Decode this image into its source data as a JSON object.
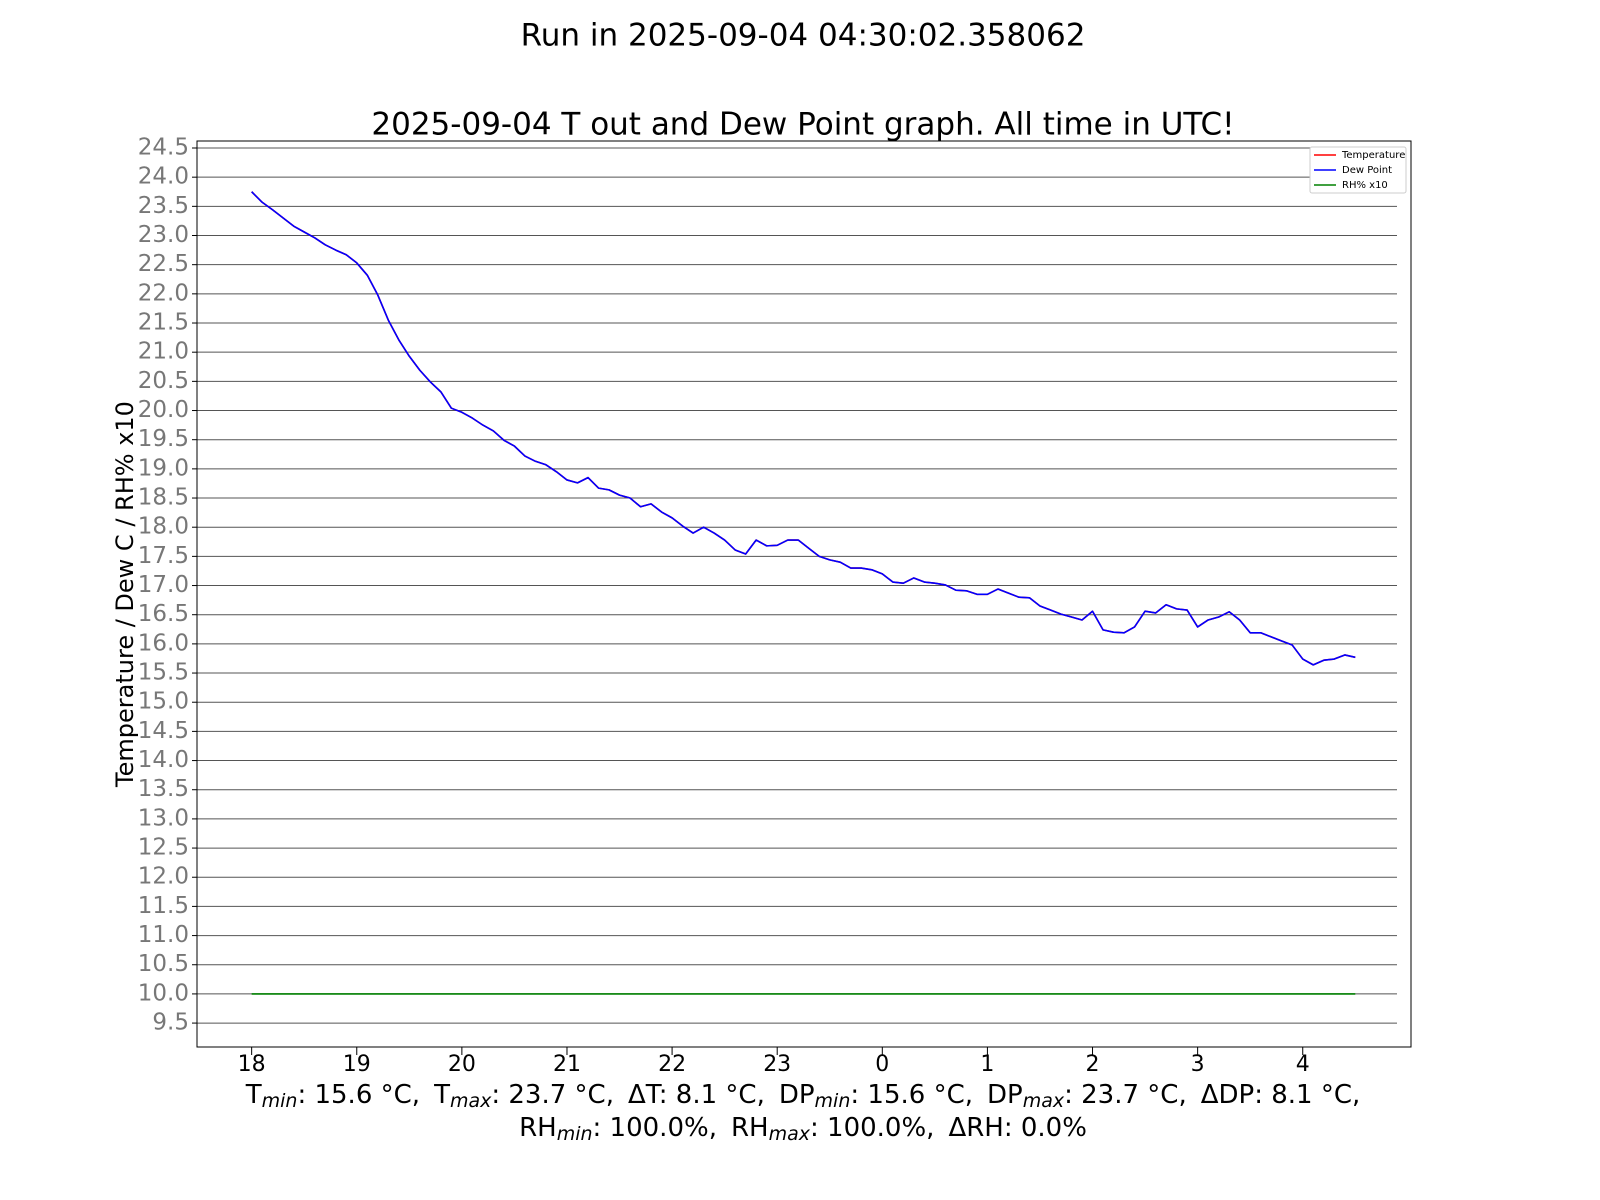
{
  "chart_data": {
    "type": "line",
    "suptitle": "Run in 2025-09-04 04:30:02.358062",
    "title": "2025-09-04 T out and Dew Point graph. All time in UTC!",
    "ylabel": "Temperature / Dew C / RH% x10",
    "xlim": [
      17.48,
      29.03
    ],
    "ylim": [
      9.09,
      24.62
    ],
    "xticks": [
      18,
      19,
      20,
      21,
      22,
      23,
      {
        "value": 24,
        "label": "0"
      },
      {
        "value": 25,
        "label": "1"
      },
      {
        "value": 26,
        "label": "2"
      },
      {
        "value": 27,
        "label": "3"
      },
      {
        "value": 28,
        "label": "4"
      }
    ],
    "yticks": [
      9.5,
      {
        "value": 10,
        "label": "10.0"
      },
      10.5,
      {
        "value": 11,
        "label": "11.0"
      },
      11.5,
      {
        "value": 12,
        "label": "12.0"
      },
      12.5,
      {
        "value": 13,
        "label": "13.0"
      },
      13.5,
      {
        "value": 14,
        "label": "14.0"
      },
      14.5,
      {
        "value": 15,
        "label": "15.0"
      },
      15.5,
      {
        "value": 16,
        "label": "16.0"
      },
      16.5,
      {
        "value": 17,
        "label": "17.0"
      },
      17.5,
      {
        "value": 18,
        "label": "18.0"
      },
      18.5,
      {
        "value": 19,
        "label": "19.0"
      },
      19.5,
      {
        "value": 20,
        "label": "20.0"
      },
      20.5,
      {
        "value": 21,
        "label": "21.0"
      },
      21.5,
      {
        "value": 22,
        "label": "22.0"
      },
      22.5,
      {
        "value": 23,
        "label": "23.0"
      },
      23.5,
      {
        "value": 24,
        "label": "24.0"
      },
      24.5
    ],
    "grid": true,
    "legend": "upper right",
    "x": [
      18.0,
      18.1,
      18.2,
      18.3,
      18.4,
      18.5,
      18.6,
      18.7,
      18.8,
      18.9,
      19.0,
      19.1,
      19.2,
      19.3,
      19.4,
      19.5,
      19.6,
      19.7,
      19.8,
      19.9,
      20.0,
      20.1,
      20.2,
      20.3,
      20.4,
      20.5,
      20.6,
      20.7,
      20.8,
      20.9,
      21.0,
      21.1,
      21.2,
      21.3,
      21.4,
      21.5,
      21.6,
      21.7,
      21.8,
      21.9,
      22.0,
      22.1,
      22.2,
      22.3,
      22.4,
      22.5,
      22.6,
      22.7,
      22.8,
      22.9,
      23.0,
      23.1,
      23.2,
      23.3,
      23.4,
      23.5,
      23.6,
      23.7,
      23.8,
      23.9,
      24.0,
      24.1,
      24.2,
      24.3,
      24.4,
      24.5,
      24.6,
      24.7,
      24.8,
      24.9,
      25.0,
      25.1,
      25.2,
      25.3,
      25.4,
      25.5,
      25.6,
      25.7,
      25.8,
      25.9,
      26.0,
      26.1,
      26.2,
      26.3,
      26.4,
      26.5,
      26.6,
      26.7,
      26.8,
      26.9,
      27.0,
      27.1,
      27.2,
      27.3,
      27.4,
      27.5,
      27.6,
      27.7,
      27.8,
      27.9,
      28.0,
      28.1,
      28.2,
      28.3,
      28.4,
      28.5
    ],
    "series": [
      {
        "name": "Temperature",
        "color": "#ff0000",
        "values": [
          23.75,
          23.57,
          23.44,
          23.3,
          23.16,
          23.06,
          22.96,
          22.84,
          22.75,
          22.67,
          22.53,
          22.32,
          21.98,
          21.55,
          21.21,
          20.93,
          20.69,
          20.49,
          20.32,
          20.04,
          19.97,
          19.87,
          19.75,
          19.65,
          19.49,
          19.39,
          19.22,
          19.13,
          19.07,
          18.95,
          18.81,
          18.76,
          18.85,
          18.67,
          18.64,
          18.55,
          18.5,
          18.35,
          18.4,
          18.26,
          18.16,
          18.02,
          17.9,
          18.0,
          17.9,
          17.78,
          17.61,
          17.54,
          17.78,
          17.68,
          17.69,
          17.78,
          17.78,
          17.64,
          17.5,
          17.44,
          17.4,
          17.3,
          17.3,
          17.27,
          17.2,
          17.06,
          17.04,
          17.13,
          17.06,
          17.04,
          17.01,
          16.92,
          16.91,
          16.85,
          16.85,
          16.94,
          16.87,
          16.8,
          16.79,
          16.65,
          16.58,
          16.51,
          16.46,
          16.41,
          16.56,
          16.24,
          16.2,
          16.19,
          16.29,
          16.56,
          16.53,
          16.67,
          16.6,
          16.58,
          16.29,
          16.41,
          16.46,
          16.55,
          16.41,
          16.19,
          16.19,
          16.12,
          16.05,
          15.98,
          15.74,
          15.64,
          15.72,
          15.74,
          15.81,
          15.77
        ]
      },
      {
        "name": "Dew Point",
        "color": "#0000ff",
        "values": [
          23.75,
          23.57,
          23.44,
          23.3,
          23.16,
          23.06,
          22.96,
          22.84,
          22.75,
          22.67,
          22.53,
          22.32,
          21.98,
          21.55,
          21.21,
          20.93,
          20.69,
          20.49,
          20.32,
          20.04,
          19.97,
          19.87,
          19.75,
          19.65,
          19.49,
          19.39,
          19.22,
          19.13,
          19.07,
          18.95,
          18.81,
          18.76,
          18.85,
          18.67,
          18.64,
          18.55,
          18.5,
          18.35,
          18.4,
          18.26,
          18.16,
          18.02,
          17.9,
          18.0,
          17.9,
          17.78,
          17.61,
          17.54,
          17.78,
          17.68,
          17.69,
          17.78,
          17.78,
          17.64,
          17.5,
          17.44,
          17.4,
          17.3,
          17.3,
          17.27,
          17.2,
          17.06,
          17.04,
          17.13,
          17.06,
          17.04,
          17.01,
          16.92,
          16.91,
          16.85,
          16.85,
          16.94,
          16.87,
          16.8,
          16.79,
          16.65,
          16.58,
          16.51,
          16.46,
          16.41,
          16.56,
          16.24,
          16.2,
          16.19,
          16.29,
          16.56,
          16.53,
          16.67,
          16.6,
          16.58,
          16.29,
          16.41,
          16.46,
          16.55,
          16.41,
          16.19,
          16.19,
          16.12,
          16.05,
          15.98,
          15.74,
          15.64,
          15.72,
          15.74,
          15.81,
          15.77
        ]
      },
      {
        "name": "RH% x10",
        "color": "#008000",
        "x": [
          18.0,
          28.5
        ],
        "values": [
          10,
          10
        ]
      }
    ],
    "stats": [
      [
        {
          "label": "T",
          "sub": "min",
          "value": ": 15.6 °C,"
        },
        {
          "label": "T",
          "sub": "max",
          "value": ": 23.7 °C,"
        },
        {
          "label": "ΔT",
          "value": ": 8.1 °C,"
        },
        {
          "label": "DP",
          "sub": "min",
          "value": ": 15.6 °C,"
        },
        {
          "label": "DP",
          "sub": "max",
          "value": ": 23.7 °C,"
        },
        {
          "label": "ΔDP",
          "value": ": 8.1 °C,"
        }
      ],
      [
        {
          "label": "RH",
          "sub": "min",
          "value": ": 100.0%,"
        },
        {
          "label": "RH",
          "sub": "max",
          "value": ": 100.0%,"
        },
        {
          "label": "ΔRH",
          "value": ": 0.0%"
        }
      ]
    ]
  }
}
